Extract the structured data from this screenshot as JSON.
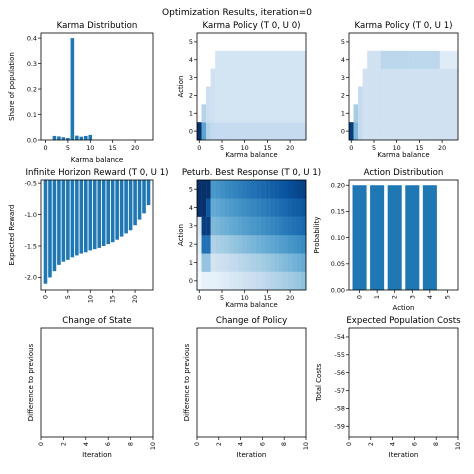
{
  "suptitle": "Optimization Results, iteration=0",
  "colors": {
    "bar": "#1f77b4",
    "blues_light": "#f7fbff",
    "blues_dark": "#08306b"
  },
  "chart_data": [
    {
      "type": "bar",
      "title": "Karma Distribution",
      "xlabel": "Karma balance",
      "ylabel": "Share of population",
      "x": [
        0,
        1,
        2,
        3,
        4,
        5,
        6,
        7,
        8,
        9,
        10,
        11,
        12,
        13,
        14,
        15,
        16,
        17,
        18,
        19,
        20,
        21,
        22,
        23
      ],
      "values": [
        0,
        0,
        0.016,
        0.014,
        0.011,
        0.008,
        0.4,
        0.017,
        0.013,
        0.016,
        0.02,
        0,
        0,
        0,
        0,
        0,
        0,
        0,
        0,
        0,
        0,
        0,
        0,
        0
      ],
      "xlim": [
        -1,
        24
      ],
      "ylim": [
        0,
        0.42
      ],
      "xticks": [
        "0",
        "5",
        "10",
        "15",
        "20"
      ],
      "yticks": [
        "0.0",
        "0.1",
        "0.2",
        "0.3",
        "0.4"
      ]
    },
    {
      "type": "heatmap",
      "title": "Karma Policy (T 0, U 0)",
      "xlabel": "Karma balance",
      "ylabel": "Action",
      "xticks": [
        "0",
        "5",
        "10",
        "15",
        "20"
      ],
      "yticks": [
        "0",
        "1",
        "2",
        "3",
        "4",
        "5"
      ],
      "colormap": "Blues",
      "description_values": {
        "k0": {
          "0": 0.9
        },
        "k1": {
          "0": 0.5,
          "1": 0.2
        },
        "k2": {
          "0": 0.35,
          "1": 0.2,
          "2": 0.15
        },
        "k3": {
          "0": 0.3,
          "1": 0.15,
          "2": 0.15,
          "3": 0.15
        },
        "k4_to_23": {
          "0": 0.25,
          "1_to_4": 0.15
        }
      }
    },
    {
      "type": "heatmap",
      "title": "Karma Policy (T 0, U 1)",
      "xlabel": "Karma balance",
      "ylabel": "",
      "xticks": [
        "0",
        "5",
        "10",
        "15",
        "20"
      ],
      "yticks": [
        "0",
        "1",
        "2",
        "3",
        "4",
        "5"
      ],
      "colormap": "Blues"
    },
    {
      "type": "bar",
      "title": "Infinite Horizon Reward (T 0, U 1)",
      "xlabel": "",
      "ylabel": "Expected Reward",
      "x": [
        0,
        1,
        2,
        3,
        4,
        5,
        6,
        7,
        8,
        9,
        10,
        11,
        12,
        13,
        14,
        15,
        16,
        17,
        18,
        19,
        20,
        21,
        22,
        23
      ],
      "values": [
        -2.1,
        -2.0,
        -1.9,
        -1.8,
        -1.75,
        -1.72,
        -1.68,
        -1.65,
        -1.62,
        -1.6,
        -1.57,
        -1.55,
        -1.53,
        -1.5,
        -1.47,
        -1.44,
        -1.4,
        -1.35,
        -1.3,
        -1.25,
        -1.17,
        -1.08,
        -0.98,
        -0.85
      ],
      "xlim": [
        -1,
        24
      ],
      "ylim": [
        -2.2,
        -0.45
      ],
      "xticks": [
        "0",
        "5",
        "10",
        "15",
        "20"
      ],
      "yticks": [
        "-0.5",
        "-1.0",
        "-1.5",
        "-2.0"
      ]
    },
    {
      "type": "heatmap",
      "title": "Peturb. Best Response (T 0, U 1)",
      "xlabel": "Karma balance",
      "ylabel": "Action",
      "xticks": [
        "0",
        "5",
        "10",
        "15",
        "20"
      ],
      "yticks": [
        "0",
        "1",
        "2",
        "3",
        "4",
        "5"
      ],
      "colormap": "Blues"
    },
    {
      "type": "bar",
      "title": "Action Distribution",
      "xlabel": "Action",
      "ylabel": "Probability",
      "categories": [
        "0",
        "1",
        "2",
        "3",
        "4",
        "5"
      ],
      "values": [
        0.2,
        0.2,
        0.2,
        0.2,
        0.2,
        0
      ],
      "ylim": [
        0,
        0.21
      ],
      "yticks": [
        "0.00",
        "0.05",
        "0.10",
        "0.15",
        "0.20"
      ]
    },
    {
      "type": "line",
      "title": "Change of State",
      "xlabel": "Iteration",
      "ylabel": "Difference to previous",
      "xlim": [
        0,
        10
      ],
      "xticks": [
        "0",
        "2",
        "4",
        "6",
        "8",
        "10"
      ]
    },
    {
      "type": "line",
      "title": "Change of Policy",
      "xlabel": "Iteration",
      "ylabel": "Difference to previous",
      "xlim": [
        0,
        10
      ],
      "xticks": [
        "0",
        "2",
        "4",
        "6",
        "8",
        "10"
      ]
    },
    {
      "type": "line",
      "title": "Expected Population Costs",
      "xlabel": "Iteration",
      "ylabel": "Total Costs",
      "xlim": [
        0,
        10
      ],
      "ylim": [
        -59.6,
        -53.5
      ],
      "xticks": [
        "0",
        "2",
        "4",
        "6",
        "8",
        "10"
      ],
      "yticks": [
        "-54",
        "-55",
        "-56",
        "-57",
        "-58",
        "-59"
      ]
    }
  ]
}
